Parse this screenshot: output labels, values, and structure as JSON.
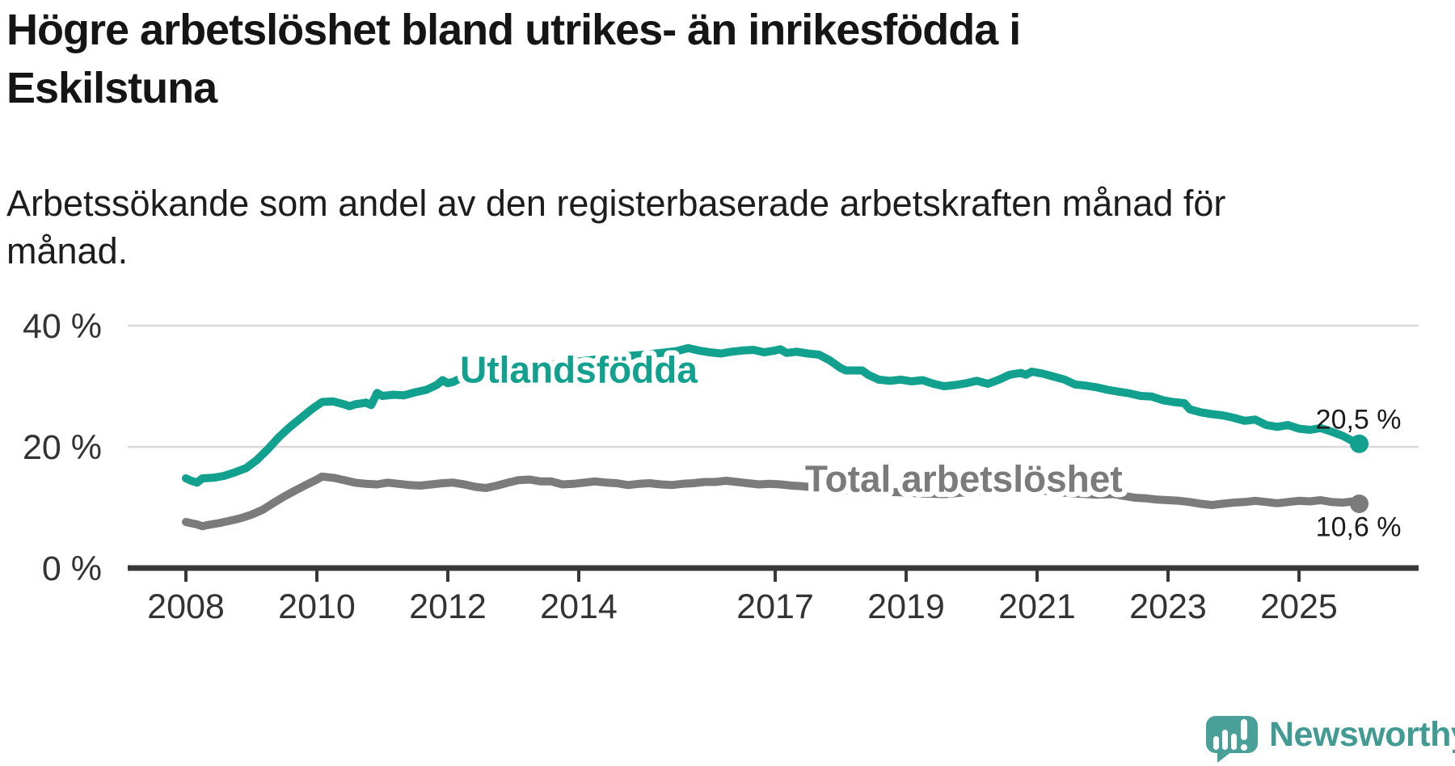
{
  "header": {
    "title_lines": [
      "Högre arbetslöshet bland utrikes- än inrikesfödda i",
      "Eskilstuna"
    ],
    "subtitle_lines": [
      "Arbetssökande som andel av den registerbaserade arbetskraften månad för",
      "månad."
    ]
  },
  "colors": {
    "foreign_born_line": "#12A08F",
    "total_line": "#7B7B7B",
    "grid": "#D8D8D8",
    "axis": "#383838",
    "tick_text": "#333333",
    "value_text": "#1C1C1C",
    "brand_teal": "#429B93"
  },
  "chart_data": {
    "type": "line",
    "title": "Högre arbetslöshet bland utrikes- än inrikesfödda i Eskilstuna",
    "subtitle": "Arbetssökande som andel av den registerbaserade arbetskraften månad för månad.",
    "unit": "%",
    "grid": "horizontal",
    "legend": "inline-labels",
    "x_axis": {
      "ticks": [
        2008,
        2010,
        2012,
        2014,
        2017,
        2019,
        2021,
        2023,
        2025
      ],
      "tick_labels": [
        "2008",
        "2010",
        "2012",
        "2014",
        "2017",
        "2019",
        "2021",
        "2023",
        "2025"
      ],
      "range": [
        2007.1,
        2026.8
      ]
    },
    "y_axis": {
      "ticks": [
        0,
        20,
        40
      ],
      "tick_labels": [
        "0 %",
        "20 %",
        "40 %"
      ],
      "range": [
        0,
        42
      ]
    },
    "series": [
      {
        "name": "Utlandsfödda",
        "color": "#12A08F",
        "end_value": 20.5,
        "end_label": "20,5 %",
        "label_anchor": [
          2014.0,
          30.6
        ],
        "end_label_offset": {
          "dx": 52,
          "dy": -19
        },
        "points": [
          [
            2008.0,
            14.8
          ],
          [
            2008.08,
            14.4
          ],
          [
            2008.17,
            14.1
          ],
          [
            2008.25,
            14.8
          ],
          [
            2008.42,
            14.9
          ],
          [
            2008.58,
            15.2
          ],
          [
            2008.75,
            15.8
          ],
          [
            2008.92,
            16.5
          ],
          [
            2009.08,
            17.8
          ],
          [
            2009.25,
            19.6
          ],
          [
            2009.42,
            21.6
          ],
          [
            2009.58,
            23.2
          ],
          [
            2009.75,
            24.7
          ],
          [
            2009.92,
            26.2
          ],
          [
            2010.08,
            27.4
          ],
          [
            2010.25,
            27.5
          ],
          [
            2010.42,
            27.0
          ],
          [
            2010.5,
            26.7
          ],
          [
            2010.58,
            27.0
          ],
          [
            2010.75,
            27.3
          ],
          [
            2010.83,
            26.9
          ],
          [
            2010.92,
            28.9
          ],
          [
            2011.0,
            28.4
          ],
          [
            2011.17,
            28.6
          ],
          [
            2011.33,
            28.5
          ],
          [
            2011.5,
            29.0
          ],
          [
            2011.67,
            29.4
          ],
          [
            2011.83,
            30.2
          ],
          [
            2011.92,
            31.0
          ],
          [
            2012.0,
            30.5
          ],
          [
            2012.08,
            30.7
          ],
          [
            2012.17,
            31.2
          ],
          [
            2012.25,
            31.1
          ],
          [
            2012.33,
            31.4
          ],
          [
            2012.5,
            31.7
          ],
          [
            2012.75,
            32.2
          ],
          [
            2013.0,
            32.7
          ],
          [
            2013.25,
            33.1
          ],
          [
            2013.5,
            33.5
          ],
          [
            2013.75,
            33.8
          ],
          [
            2014.0,
            34.1
          ],
          [
            2014.25,
            34.4
          ],
          [
            2014.5,
            34.7
          ],
          [
            2014.75,
            35.0
          ],
          [
            2015.0,
            35.2
          ],
          [
            2015.25,
            35.5
          ],
          [
            2015.5,
            35.8
          ],
          [
            2015.67,
            36.3
          ],
          [
            2015.83,
            35.9
          ],
          [
            2016.0,
            35.6
          ],
          [
            2016.17,
            35.4
          ],
          [
            2016.33,
            35.7
          ],
          [
            2016.5,
            35.9
          ],
          [
            2016.67,
            36.0
          ],
          [
            2016.83,
            35.6
          ],
          [
            2017.0,
            35.9
          ],
          [
            2017.08,
            36.1
          ],
          [
            2017.17,
            35.5
          ],
          [
            2017.33,
            35.7
          ],
          [
            2017.5,
            35.4
          ],
          [
            2017.67,
            35.2
          ],
          [
            2017.83,
            34.3
          ],
          [
            2018.0,
            33.0
          ],
          [
            2018.08,
            32.6
          ],
          [
            2018.33,
            32.6
          ],
          [
            2018.42,
            31.9
          ],
          [
            2018.58,
            31.1
          ],
          [
            2018.75,
            30.9
          ],
          [
            2018.92,
            31.1
          ],
          [
            2019.08,
            30.8
          ],
          [
            2019.25,
            31.0
          ],
          [
            2019.42,
            30.4
          ],
          [
            2019.58,
            30.0
          ],
          [
            2019.75,
            30.2
          ],
          [
            2019.92,
            30.5
          ],
          [
            2020.08,
            30.9
          ],
          [
            2020.25,
            30.4
          ],
          [
            2020.42,
            31.1
          ],
          [
            2020.58,
            31.9
          ],
          [
            2020.75,
            32.2
          ],
          [
            2020.83,
            31.9
          ],
          [
            2020.92,
            32.4
          ],
          [
            2021.08,
            32.1
          ],
          [
            2021.25,
            31.6
          ],
          [
            2021.42,
            31.1
          ],
          [
            2021.58,
            30.3
          ],
          [
            2021.75,
            30.1
          ],
          [
            2021.92,
            29.8
          ],
          [
            2022.08,
            29.4
          ],
          [
            2022.25,
            29.1
          ],
          [
            2022.42,
            28.8
          ],
          [
            2022.58,
            28.4
          ],
          [
            2022.75,
            28.3
          ],
          [
            2022.92,
            27.7
          ],
          [
            2023.08,
            27.4
          ],
          [
            2023.25,
            27.2
          ],
          [
            2023.33,
            26.2
          ],
          [
            2023.5,
            25.7
          ],
          [
            2023.67,
            25.4
          ],
          [
            2023.83,
            25.2
          ],
          [
            2024.0,
            24.8
          ],
          [
            2024.17,
            24.3
          ],
          [
            2024.33,
            24.5
          ],
          [
            2024.5,
            23.6
          ],
          [
            2024.67,
            23.3
          ],
          [
            2024.83,
            23.6
          ],
          [
            2025.0,
            23.0
          ],
          [
            2025.17,
            22.8
          ],
          [
            2025.33,
            23.1
          ],
          [
            2025.5,
            22.5
          ],
          [
            2025.67,
            21.8
          ],
          [
            2025.83,
            20.9
          ],
          [
            2025.92,
            20.5
          ]
        ]
      },
      {
        "name": "Total arbetslöshet",
        "color": "#7B7B7B",
        "end_value": 10.6,
        "end_label": "10,6 %",
        "label_anchor": [
          2019.88,
          12.6
        ],
        "end_label_offset": {
          "dx": 52,
          "dy": 40
        },
        "points": [
          [
            2008.0,
            7.6
          ],
          [
            2008.08,
            7.4
          ],
          [
            2008.17,
            7.2
          ],
          [
            2008.25,
            6.9
          ],
          [
            2008.33,
            7.1
          ],
          [
            2008.5,
            7.4
          ],
          [
            2008.67,
            7.8
          ],
          [
            2008.83,
            8.2
          ],
          [
            2009.0,
            8.8
          ],
          [
            2009.17,
            9.6
          ],
          [
            2009.33,
            10.7
          ],
          [
            2009.5,
            11.8
          ],
          [
            2009.67,
            12.8
          ],
          [
            2009.83,
            13.7
          ],
          [
            2010.0,
            14.6
          ],
          [
            2010.08,
            15.1
          ],
          [
            2010.25,
            14.9
          ],
          [
            2010.42,
            14.5
          ],
          [
            2010.58,
            14.1
          ],
          [
            2010.75,
            13.9
          ],
          [
            2010.92,
            13.8
          ],
          [
            2011.08,
            14.1
          ],
          [
            2011.25,
            13.9
          ],
          [
            2011.42,
            13.7
          ],
          [
            2011.58,
            13.6
          ],
          [
            2011.75,
            13.8
          ],
          [
            2011.92,
            14.0
          ],
          [
            2012.08,
            14.1
          ],
          [
            2012.25,
            13.8
          ],
          [
            2012.42,
            13.4
          ],
          [
            2012.58,
            13.2
          ],
          [
            2012.75,
            13.6
          ],
          [
            2012.92,
            14.1
          ],
          [
            2013.08,
            14.5
          ],
          [
            2013.25,
            14.6
          ],
          [
            2013.42,
            14.3
          ],
          [
            2013.58,
            14.3
          ],
          [
            2013.75,
            13.8
          ],
          [
            2013.92,
            13.9
          ],
          [
            2014.08,
            14.1
          ],
          [
            2014.25,
            14.3
          ],
          [
            2014.42,
            14.1
          ],
          [
            2014.58,
            14.0
          ],
          [
            2014.75,
            13.7
          ],
          [
            2014.92,
            13.9
          ],
          [
            2015.08,
            14.0
          ],
          [
            2015.25,
            13.8
          ],
          [
            2015.42,
            13.7
          ],
          [
            2015.58,
            13.9
          ],
          [
            2015.75,
            14.0
          ],
          [
            2015.92,
            14.2
          ],
          [
            2016.08,
            14.2
          ],
          [
            2016.25,
            14.4
          ],
          [
            2016.42,
            14.2
          ],
          [
            2016.58,
            14.0
          ],
          [
            2016.75,
            13.8
          ],
          [
            2016.92,
            13.9
          ],
          [
            2017.08,
            13.8
          ],
          [
            2017.25,
            13.6
          ],
          [
            2017.42,
            13.5
          ],
          [
            2017.67,
            13.2
          ],
          [
            2017.92,
            13.0
          ],
          [
            2018.25,
            12.8
          ],
          [
            2018.58,
            12.6
          ],
          [
            2018.92,
            12.5
          ],
          [
            2019.25,
            12.3
          ],
          [
            2019.58,
            12.2
          ],
          [
            2019.92,
            12.5
          ],
          [
            2020.25,
            13.0
          ],
          [
            2020.58,
            13.2
          ],
          [
            2020.92,
            13.0
          ],
          [
            2021.25,
            12.6
          ],
          [
            2021.58,
            12.3
          ],
          [
            2021.92,
            12.1
          ],
          [
            2022.17,
            12.2
          ],
          [
            2022.33,
            11.9
          ],
          [
            2022.5,
            11.6
          ],
          [
            2022.67,
            11.5
          ],
          [
            2022.83,
            11.3
          ],
          [
            2023.0,
            11.2
          ],
          [
            2023.17,
            11.1
          ],
          [
            2023.33,
            10.9
          ],
          [
            2023.5,
            10.6
          ],
          [
            2023.67,
            10.4
          ],
          [
            2023.83,
            10.6
          ],
          [
            2024.0,
            10.8
          ],
          [
            2024.17,
            10.9
          ],
          [
            2024.33,
            11.1
          ],
          [
            2024.5,
            10.9
          ],
          [
            2024.67,
            10.7
          ],
          [
            2024.83,
            10.9
          ],
          [
            2025.0,
            11.1
          ],
          [
            2025.17,
            11.0
          ],
          [
            2025.33,
            11.2
          ],
          [
            2025.5,
            10.9
          ],
          [
            2025.67,
            10.8
          ],
          [
            2025.83,
            11.0
          ],
          [
            2025.92,
            10.6
          ]
        ]
      }
    ]
  },
  "footer": {
    "brand": "Newsworthy"
  }
}
